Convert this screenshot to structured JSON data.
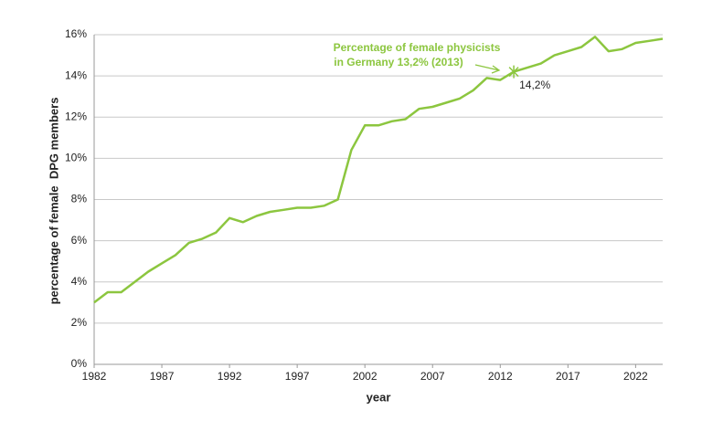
{
  "chart_data": {
    "type": "line",
    "x_label": "year",
    "y_label": "percentage of female  DPG members",
    "x": [
      1982,
      1983,
      1984,
      1985,
      1986,
      1987,
      1988,
      1989,
      1990,
      1991,
      1992,
      1993,
      1994,
      1995,
      1996,
      1997,
      1998,
      1999,
      2000,
      2001,
      2002,
      2003,
      2004,
      2005,
      2006,
      2007,
      2008,
      2009,
      2010,
      2011,
      2012,
      2013,
      2014,
      2015,
      2016,
      2017,
      2018,
      2019,
      2020,
      2021,
      2022,
      2023,
      2024
    ],
    "values": [
      3.0,
      3.5,
      3.5,
      4.0,
      4.5,
      4.9,
      5.3,
      5.9,
      6.1,
      6.4,
      7.1,
      6.9,
      7.2,
      7.4,
      7.5,
      7.6,
      7.6,
      7.7,
      8.0,
      10.4,
      11.6,
      11.6,
      11.8,
      11.9,
      12.4,
      12.5,
      12.7,
      12.9,
      13.3,
      13.9,
      13.8,
      14.2,
      14.4,
      14.6,
      15.0,
      15.2,
      15.4,
      15.9,
      15.2,
      15.3,
      15.6,
      15.7,
      15.8
    ],
    "color": "#8cc63f",
    "xlim": [
      1982,
      2024
    ],
    "xticks": [
      1982,
      1987,
      1992,
      1997,
      2002,
      2007,
      2012,
      2017,
      2022
    ],
    "ylim": [
      0,
      16
    ],
    "yticks": [
      {
        "value": 0,
        "label": "0%"
      },
      {
        "value": 2,
        "label": "2%"
      },
      {
        "value": 4,
        "label": "4%"
      },
      {
        "value": 6,
        "label": "6%"
      },
      {
        "value": 8,
        "label": "8%"
      },
      {
        "value": 10,
        "label": "10%"
      },
      {
        "value": 12,
        "label": "12%"
      },
      {
        "value": 14,
        "label": "14%"
      },
      {
        "value": 16,
        "label": "16%"
      }
    ],
    "grid": true,
    "annotation": [
      "Percentage of female physicists",
      "in Germany 13,2% (2013)"
    ],
    "highlight": {
      "x": 2013,
      "value": 14.2,
      "value_label": "14,2%"
    }
  }
}
